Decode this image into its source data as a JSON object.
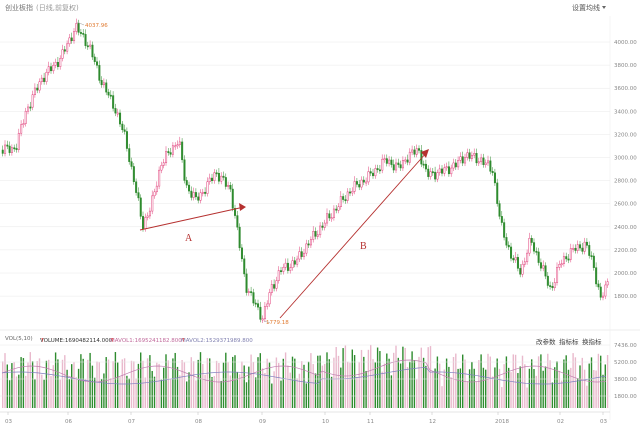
{
  "header": {
    "title": "创业板指",
    "subtitle": "(日线,前复权)",
    "settings_label": "设置均线"
  },
  "price_axis": {
    "ticks": [
      "4000.00",
      "3800.00",
      "3600.00",
      "3400.00",
      "3200.00",
      "3000.00",
      "2800.00",
      "2600.00",
      "2400.00",
      "2200.00",
      "2000.00",
      "1800.00"
    ]
  },
  "annotations": {
    "high_label": "4037.96",
    "low_label": "1779.18",
    "label_a": "A",
    "label_b": "B"
  },
  "volume_header": {
    "vol_param": "VOL(5,10)",
    "volume_text": "VOLUME:1690482114.000",
    "ma1_text": "MAVOL1:1695241182.800",
    "ma2_text": "MAVOL2:1529371989.800",
    "arrow_up": "↑",
    "arrow_down": "↓",
    "btn_params": "改参数",
    "btn_indicator": "指标标",
    "btn_switch": "换指标"
  },
  "volume_axis": {
    "ticks": [
      "7436.00",
      "5200.00",
      "3800.00",
      "1800.00"
    ]
  },
  "x_axis": {
    "labels": [
      "03",
      "06",
      "07",
      "08",
      "09",
      "10",
      "11",
      "12",
      "2018",
      "02",
      "03"
    ]
  },
  "colors": {
    "up": "#e0407a",
    "down": "#2e8b2e",
    "arrow": "#b5302f",
    "ma_up": "#c07eb0",
    "ma_down": "#8080c0",
    "grid": "#e8e8e8"
  }
}
